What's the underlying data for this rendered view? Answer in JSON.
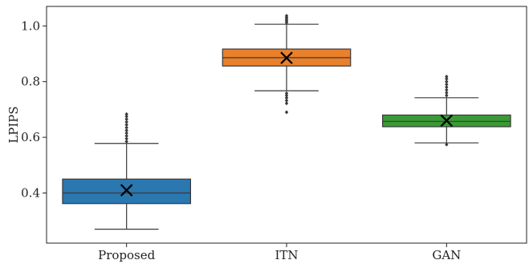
{
  "chart_data": {
    "type": "box",
    "title": "",
    "xlabel": "",
    "ylabel": "LPIPS",
    "ylim": [
      0.22,
      1.07
    ],
    "yticks": [
      0.4,
      0.6,
      0.8,
      1.0
    ],
    "ytick_labels": [
      "0.4",
      "0.6",
      "0.8",
      "1.0"
    ],
    "grid": false,
    "categories": [
      "Proposed",
      "ITN",
      "GAN"
    ],
    "boxes": [
      {
        "name": "Proposed",
        "color": "#2b77b0",
        "whisker_low": 0.27,
        "q1": 0.362,
        "median": 0.4,
        "q3": 0.45,
        "whisker_high": 0.578,
        "mean": 0.41,
        "outliers_low": [],
        "outliers_high": [
          0.585,
          0.595,
          0.605,
          0.615,
          0.625,
          0.635,
          0.645,
          0.655,
          0.665,
          0.675,
          0.683
        ]
      },
      {
        "name": "ITN",
        "color": "#e9802b",
        "whisker_low": 0.767,
        "q1": 0.856,
        "median": 0.886,
        "q3": 0.917,
        "whisker_high": 1.006,
        "mean": 0.885,
        "outliers_low": [
          0.69,
          0.722,
          0.732,
          0.742,
          0.75,
          0.758
        ],
        "outliers_high": [
          1.012,
          1.018,
          1.024,
          1.03,
          1.036
        ]
      },
      {
        "name": "GAN",
        "color": "#3a9a35",
        "whisker_low": 0.58,
        "q1": 0.638,
        "median": 0.657,
        "q3": 0.68,
        "whisker_high": 0.742,
        "mean": 0.66,
        "outliers_low": [
          0.574
        ],
        "outliers_high": [
          0.75,
          0.76,
          0.77,
          0.78,
          0.79,
          0.8,
          0.81,
          0.818
        ]
      }
    ]
  }
}
